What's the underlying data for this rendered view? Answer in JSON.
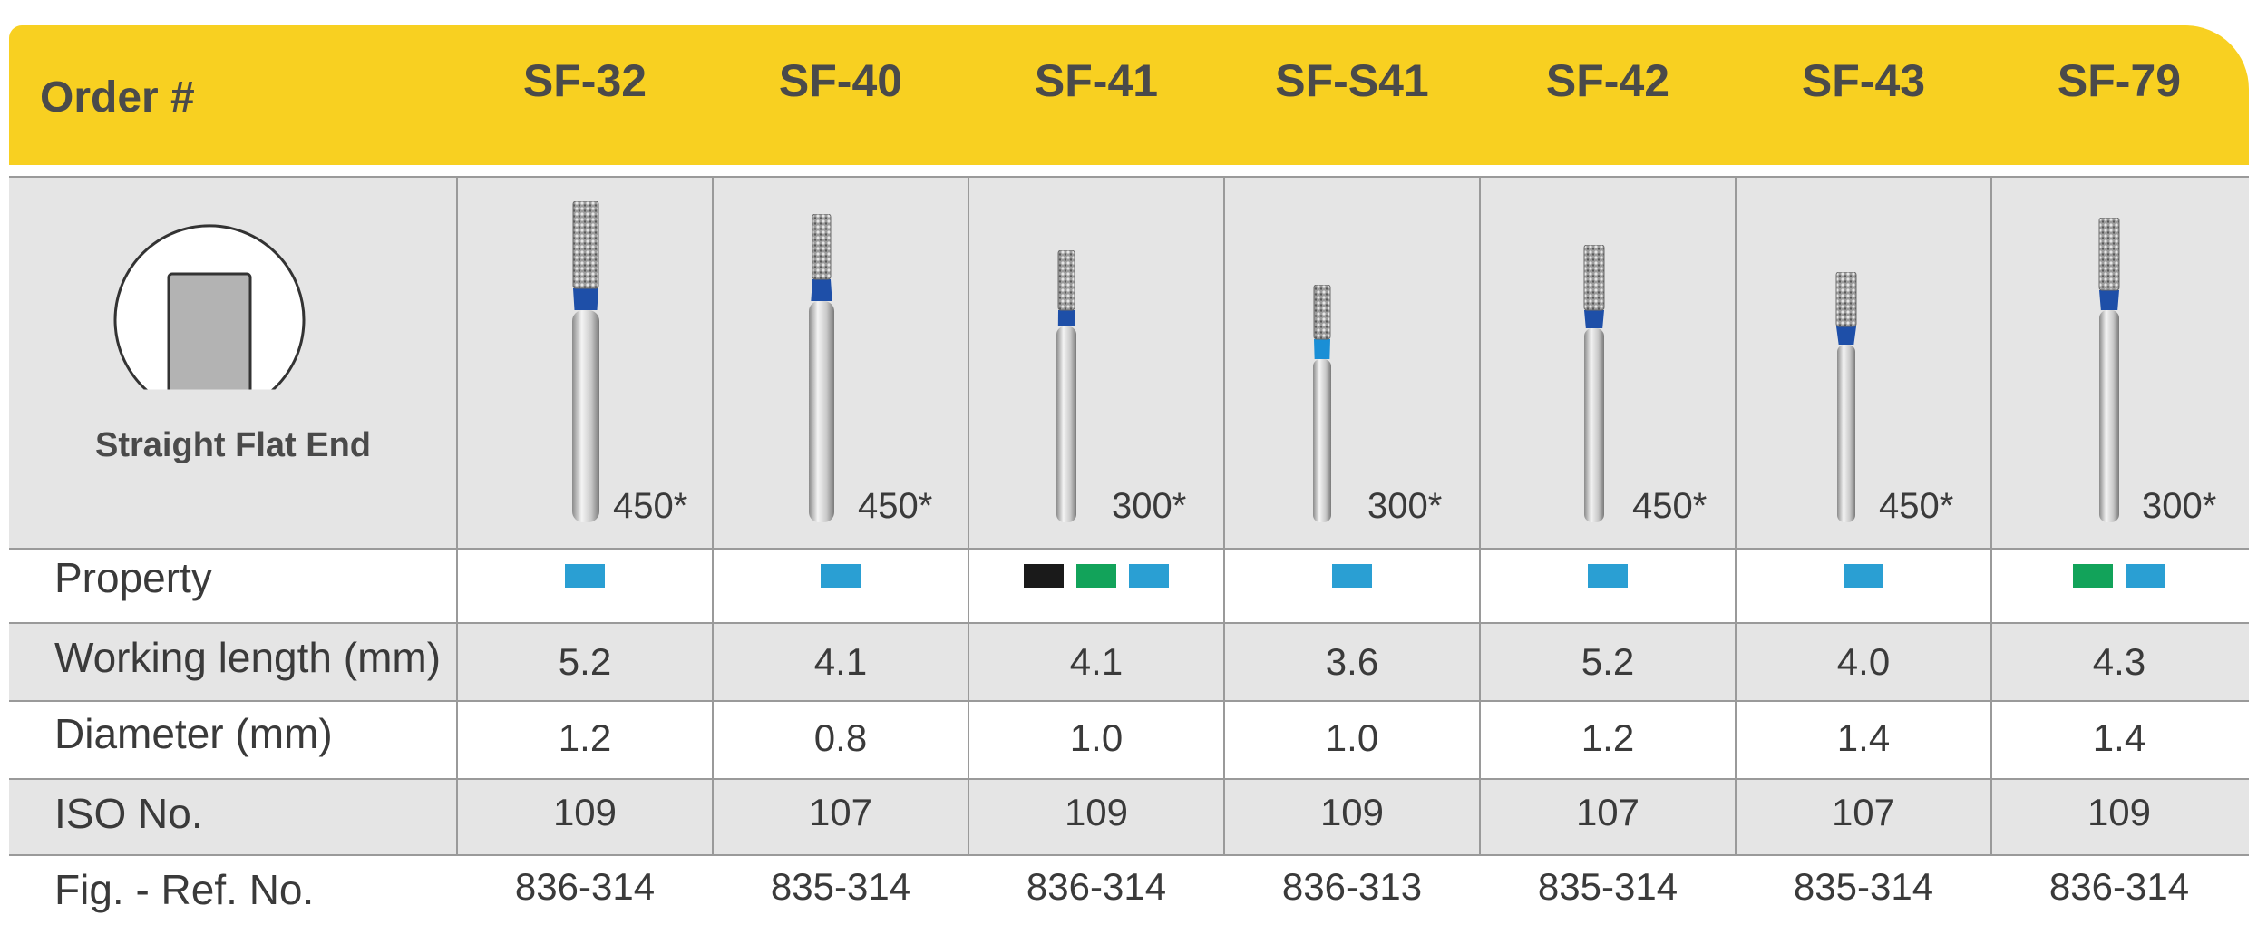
{
  "header": {
    "label": "Order #"
  },
  "colors": {
    "header_bg": "#f8d021",
    "row_bg": "#e5e5e5",
    "blue": "#2a9fd3",
    "green": "#12a35a",
    "black": "#1a1a1a",
    "neck_blue": "#1e4fa8"
  },
  "shape": {
    "caption": "Straight Flat End"
  },
  "rows": {
    "property": "Property",
    "working_length": "Working length (mm)",
    "diameter": "Diameter (mm)",
    "iso": "ISO No.",
    "fig_ref": "Fig. - Ref. No."
  },
  "products": [
    {
      "code": "SF-32",
      "rpm": "450*",
      "property": [
        "blue"
      ],
      "working_length": "5.2",
      "diameter": "1.2",
      "iso": "109",
      "fig_ref": "836-314"
    },
    {
      "code": "SF-40",
      "rpm": "450*",
      "property": [
        "blue"
      ],
      "working_length": "4.1",
      "diameter": "0.8",
      "iso": "107",
      "fig_ref": "835-314"
    },
    {
      "code": "SF-41",
      "rpm": "300*",
      "property": [
        "black",
        "green",
        "blue"
      ],
      "working_length": "4.1",
      "diameter": "1.0",
      "iso": "109",
      "fig_ref": "836-314"
    },
    {
      "code": "SF-S41",
      "rpm": "300*",
      "property": [
        "blue"
      ],
      "working_length": "3.6",
      "diameter": "1.0",
      "iso": "109",
      "fig_ref": "836-313"
    },
    {
      "code": "SF-42",
      "rpm": "450*",
      "property": [
        "blue"
      ],
      "working_length": "5.2",
      "diameter": "1.2",
      "iso": "107",
      "fig_ref": "835-314"
    },
    {
      "code": "SF-43",
      "rpm": "450*",
      "property": [
        "blue"
      ],
      "working_length": "4.0",
      "diameter": "1.4",
      "iso": "107",
      "fig_ref": "835-314"
    },
    {
      "code": "SF-79",
      "rpm": "300*",
      "property": [
        "green",
        "blue"
      ],
      "working_length": "4.3",
      "diameter": "1.4",
      "iso": "109",
      "fig_ref": "836-314"
    }
  ]
}
